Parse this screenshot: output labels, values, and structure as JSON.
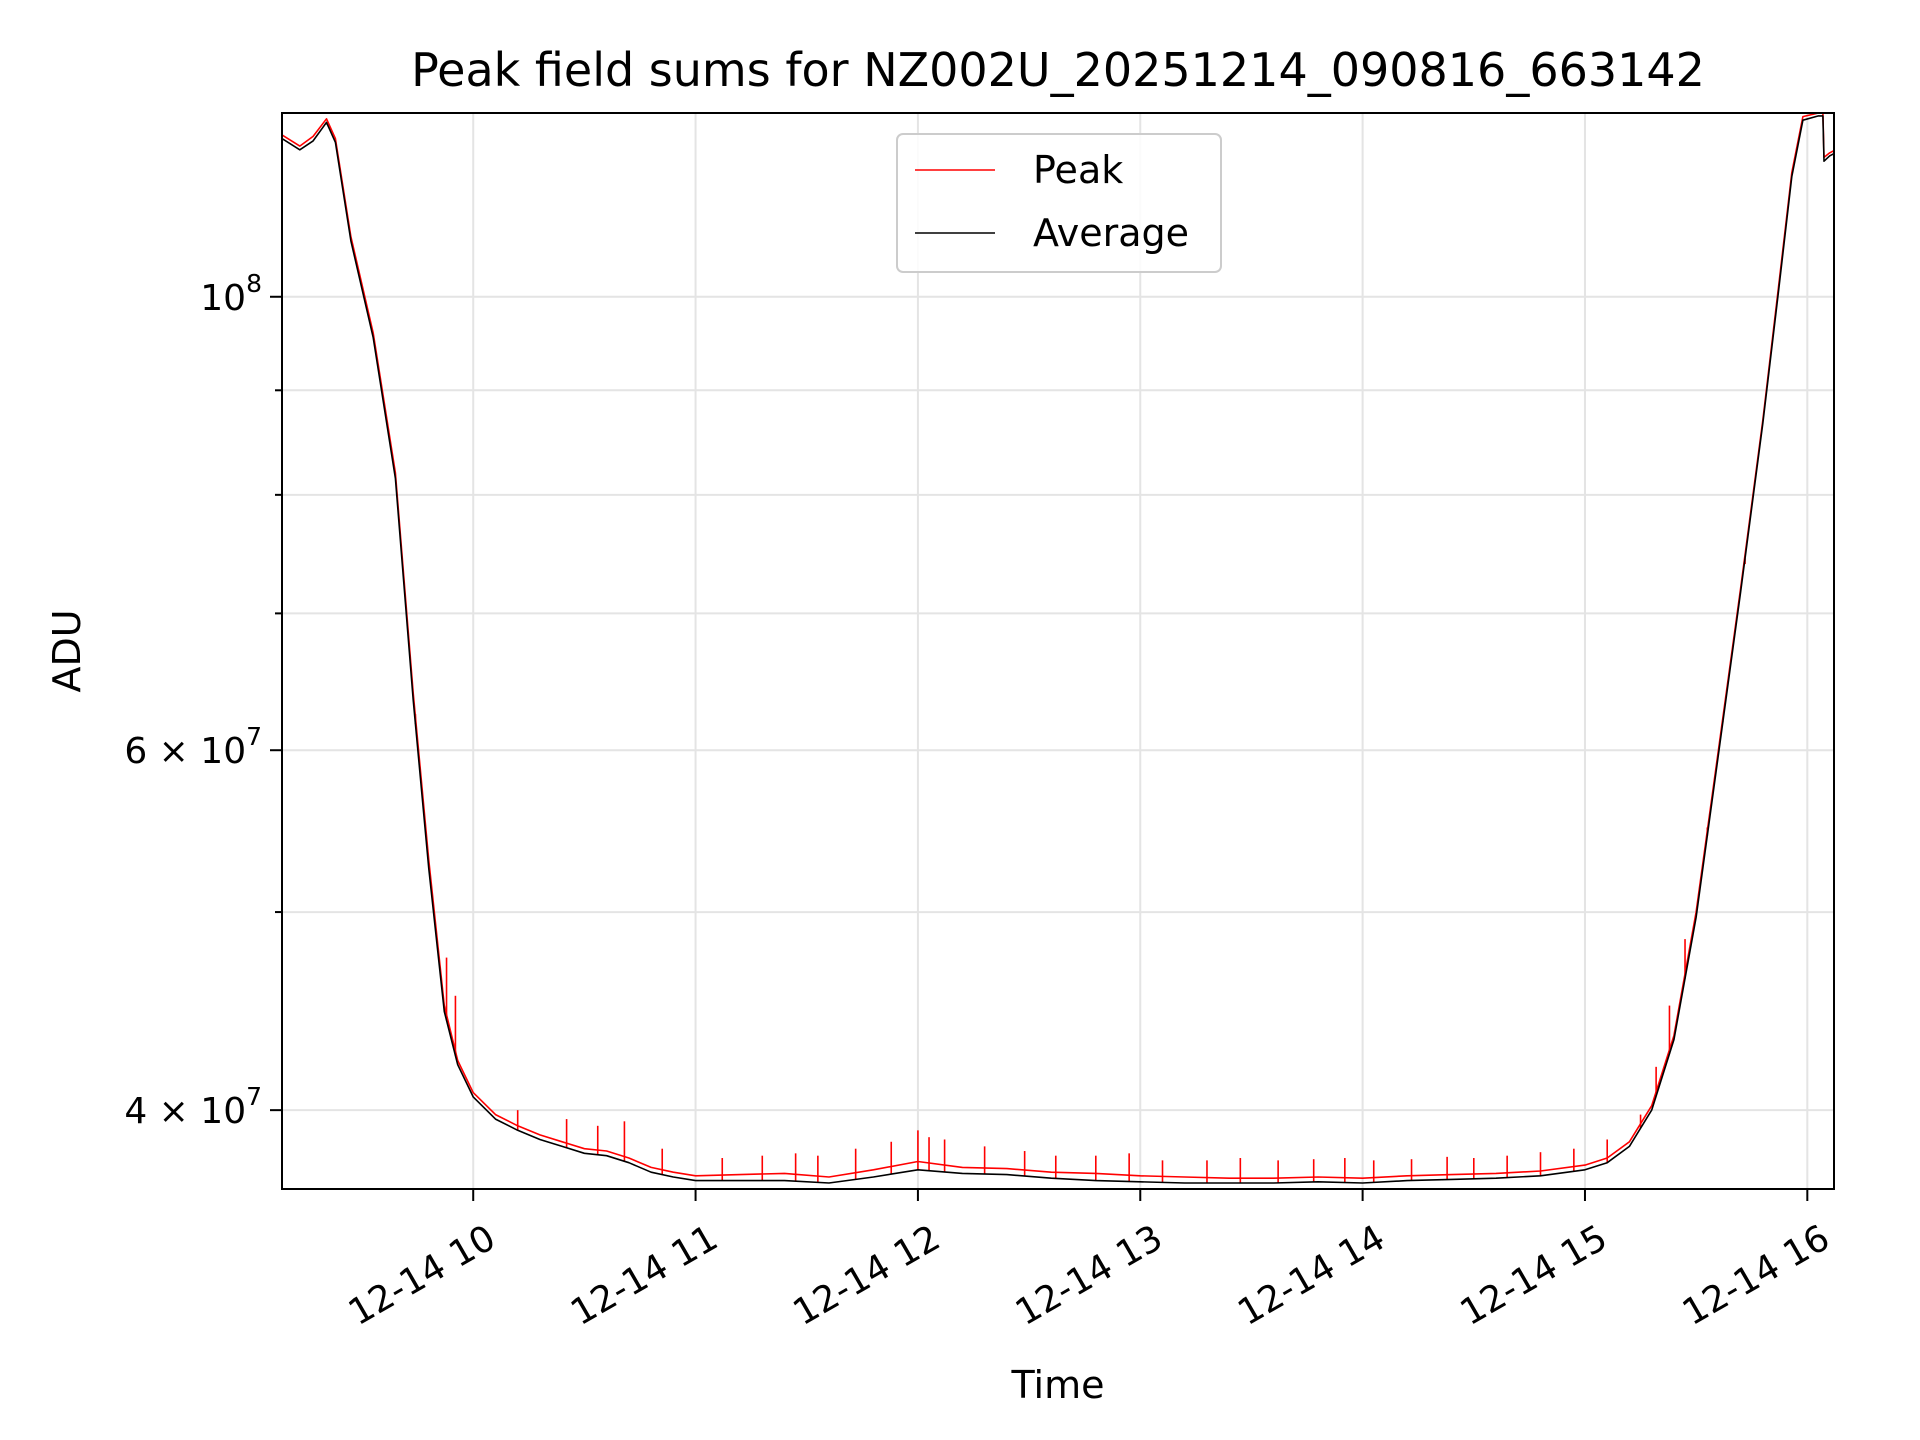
{
  "chart_data": {
    "type": "line",
    "title": "Peak field sums for NZ002U_20251214_090816_663142",
    "xlabel": "Time",
    "ylabel": "ADU",
    "yscale": "log",
    "xlim": [
      9.14,
      16.12
    ],
    "ylim": [
      36600000,
      123000000
    ],
    "grid": true,
    "legend_position": "upper center",
    "x_ticks": [
      {
        "value": 10,
        "label": "12-14 10"
      },
      {
        "value": 11,
        "label": "12-14 11"
      },
      {
        "value": 12,
        "label": "12-14 12"
      },
      {
        "value": 13,
        "label": "12-14 13"
      },
      {
        "value": 14,
        "label": "12-14 14"
      },
      {
        "value": 15,
        "label": "12-14 15"
      },
      {
        "value": 16,
        "label": "12-14 16"
      }
    ],
    "y_major_ticks": [
      {
        "value": 40000000,
        "mant": "4",
        "exp": "7"
      },
      {
        "value": 60000000,
        "mant": "6",
        "exp": "7"
      },
      {
        "value": 100000000,
        "mant": "",
        "exp": "8"
      }
    ],
    "y_minor_ticks": [
      50000000,
      70000000,
      80000000,
      90000000
    ],
    "series": [
      {
        "name": "Peak",
        "color": "#ff0000",
        "points": [
          [
            9.14,
            120000000
          ],
          [
            9.22,
            118500000
          ],
          [
            9.28,
            119800000
          ],
          [
            9.34,
            122200000
          ],
          [
            9.38,
            119500000
          ],
          [
            9.45,
            107000000
          ],
          [
            9.55,
            96000000
          ],
          [
            9.65,
            82000000
          ],
          [
            9.73,
            64000000
          ],
          [
            9.8,
            53000000
          ],
          [
            9.87,
            45000000
          ],
          [
            9.93,
            42300000
          ],
          [
            10.0,
            40800000
          ],
          [
            10.1,
            39800000
          ],
          [
            10.2,
            39300000
          ],
          [
            10.3,
            38900000
          ],
          [
            10.4,
            38600000
          ],
          [
            10.5,
            38300000
          ],
          [
            10.6,
            38200000
          ],
          [
            10.7,
            37900000
          ],
          [
            10.8,
            37500000
          ],
          [
            10.9,
            37300000
          ],
          [
            11.0,
            37150000
          ],
          [
            11.2,
            37200000
          ],
          [
            11.4,
            37250000
          ],
          [
            11.6,
            37100000
          ],
          [
            11.8,
            37400000
          ],
          [
            12.0,
            37750000
          ],
          [
            12.2,
            37500000
          ],
          [
            12.4,
            37450000
          ],
          [
            12.6,
            37300000
          ],
          [
            12.8,
            37250000
          ],
          [
            13.0,
            37150000
          ],
          [
            13.2,
            37100000
          ],
          [
            13.4,
            37050000
          ],
          [
            13.6,
            37050000
          ],
          [
            13.8,
            37100000
          ],
          [
            14.0,
            37050000
          ],
          [
            14.2,
            37150000
          ],
          [
            14.4,
            37200000
          ],
          [
            14.6,
            37250000
          ],
          [
            14.8,
            37350000
          ],
          [
            15.0,
            37600000
          ],
          [
            15.1,
            37900000
          ],
          [
            15.2,
            38600000
          ],
          [
            15.3,
            40200000
          ],
          [
            15.4,
            43500000
          ],
          [
            15.5,
            50000000
          ],
          [
            15.6,
            60000000
          ],
          [
            15.7,
            72000000
          ],
          [
            15.8,
            87000000
          ],
          [
            15.87,
            101000000
          ],
          [
            15.93,
            115000000
          ],
          [
            15.98,
            122500000
          ],
          [
            16.05,
            123000000
          ],
          [
            16.07,
            123000000
          ],
          [
            16.075,
            117000000
          ],
          [
            16.1,
            117600000
          ],
          [
            16.12,
            117900000
          ]
        ],
        "spikes": [
          [
            9.74,
            62500000
          ],
          [
            9.88,
            47500000
          ],
          [
            9.92,
            45500000
          ],
          [
            10.2,
            40000000
          ],
          [
            10.42,
            39600000
          ],
          [
            10.56,
            39300000
          ],
          [
            10.68,
            39500000
          ],
          [
            10.85,
            38300000
          ],
          [
            11.12,
            37900000
          ],
          [
            11.3,
            38000000
          ],
          [
            11.45,
            38100000
          ],
          [
            11.55,
            38000000
          ],
          [
            11.72,
            38300000
          ],
          [
            11.88,
            38600000
          ],
          [
            12.0,
            39100000
          ],
          [
            12.05,
            38800000
          ],
          [
            12.12,
            38700000
          ],
          [
            12.3,
            38400000
          ],
          [
            12.48,
            38200000
          ],
          [
            12.62,
            38000000
          ],
          [
            12.8,
            38000000
          ],
          [
            12.95,
            38100000
          ],
          [
            13.1,
            37800000
          ],
          [
            13.3,
            37800000
          ],
          [
            13.45,
            37900000
          ],
          [
            13.62,
            37800000
          ],
          [
            13.78,
            37850000
          ],
          [
            13.92,
            37900000
          ],
          [
            14.05,
            37800000
          ],
          [
            14.22,
            37850000
          ],
          [
            14.38,
            37950000
          ],
          [
            14.5,
            37900000
          ],
          [
            14.65,
            38000000
          ],
          [
            14.8,
            38150000
          ],
          [
            14.95,
            38300000
          ],
          [
            15.1,
            38700000
          ],
          [
            15.25,
            39800000
          ],
          [
            15.32,
            42000000
          ],
          [
            15.38,
            45000000
          ],
          [
            15.45,
            48500000
          ],
          [
            15.55,
            55000000
          ],
          [
            15.62,
            62000000
          ],
          [
            15.72,
            74000000
          ]
        ]
      },
      {
        "name": "Average",
        "color": "#000000",
        "points": [
          [
            9.14,
            119500000
          ],
          [
            9.22,
            118000000
          ],
          [
            9.28,
            119200000
          ],
          [
            9.34,
            121700000
          ],
          [
            9.38,
            119000000
          ],
          [
            9.45,
            106500000
          ],
          [
            9.55,
            95500000
          ],
          [
            9.65,
            81500000
          ],
          [
            9.73,
            63500000
          ],
          [
            9.8,
            52500000
          ],
          [
            9.87,
            44700000
          ],
          [
            9.93,
            42100000
          ],
          [
            10.0,
            40600000
          ],
          [
            10.1,
            39600000
          ],
          [
            10.2,
            39100000
          ],
          [
            10.3,
            38700000
          ],
          [
            10.4,
            38400000
          ],
          [
            10.5,
            38100000
          ],
          [
            10.6,
            38000000
          ],
          [
            10.7,
            37700000
          ],
          [
            10.8,
            37300000
          ],
          [
            10.9,
            37100000
          ],
          [
            11.0,
            36950000
          ],
          [
            11.2,
            36950000
          ],
          [
            11.4,
            36950000
          ],
          [
            11.6,
            36850000
          ],
          [
            11.8,
            37100000
          ],
          [
            12.0,
            37400000
          ],
          [
            12.2,
            37250000
          ],
          [
            12.4,
            37200000
          ],
          [
            12.6,
            37050000
          ],
          [
            12.8,
            36950000
          ],
          [
            13.0,
            36900000
          ],
          [
            13.2,
            36850000
          ],
          [
            13.4,
            36850000
          ],
          [
            13.6,
            36850000
          ],
          [
            13.8,
            36900000
          ],
          [
            14.0,
            36850000
          ],
          [
            14.2,
            36950000
          ],
          [
            14.4,
            37000000
          ],
          [
            14.6,
            37050000
          ],
          [
            14.8,
            37150000
          ],
          [
            15.0,
            37400000
          ],
          [
            15.1,
            37700000
          ],
          [
            15.2,
            38400000
          ],
          [
            15.3,
            40000000
          ],
          [
            15.4,
            43300000
          ],
          [
            15.5,
            49700000
          ],
          [
            15.6,
            59700000
          ],
          [
            15.7,
            71700000
          ],
          [
            15.8,
            86700000
          ],
          [
            15.87,
            100500000
          ],
          [
            15.93,
            114500000
          ],
          [
            15.98,
            122000000
          ],
          [
            16.05,
            122600000
          ],
          [
            16.07,
            122600000
          ],
          [
            16.075,
            116500000
          ],
          [
            16.1,
            117200000
          ],
          [
            16.12,
            117500000
          ]
        ]
      }
    ]
  }
}
